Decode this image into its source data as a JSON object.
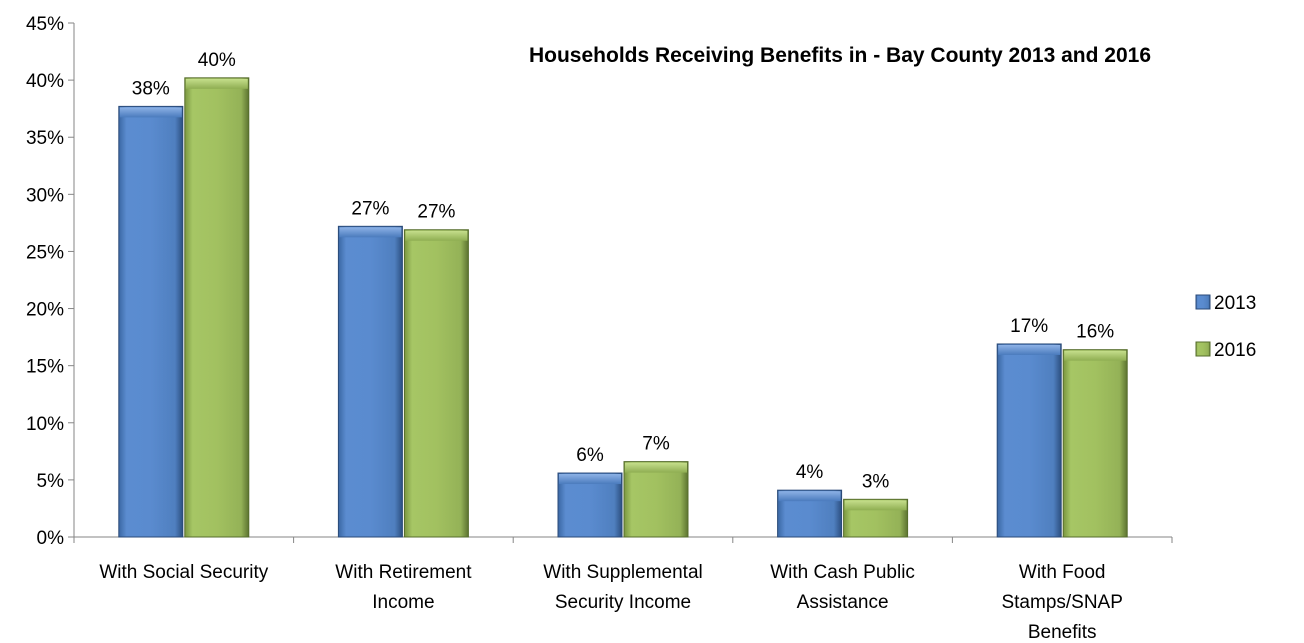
{
  "chart_data": {
    "type": "bar",
    "title": "Households Receiving Benefits in - Bay County 2013 and 2016",
    "categories": [
      [
        "With Social Security"
      ],
      [
        "With Retirement",
        "Income"
      ],
      [
        "With Supplemental",
        "Security Income"
      ],
      [
        "With Cash Public",
        "Assistance"
      ],
      [
        "With Food",
        "Stamps/SNAP",
        "Benefits"
      ]
    ],
    "series": [
      {
        "name": "2013",
        "values": [
          37.7,
          27.2,
          5.6,
          4.1,
          16.9
        ],
        "labels": [
          "38%",
          "27%",
          "6%",
          "4%",
          "17%"
        ],
        "color": "#4f81bd"
      },
      {
        "name": "2016",
        "values": [
          40.2,
          26.9,
          6.6,
          3.3,
          16.4
        ],
        "labels": [
          "40%",
          "27%",
          "7%",
          "3%",
          "16%"
        ],
        "color": "#9bbb59"
      }
    ],
    "ylim": [
      0,
      45
    ],
    "yticks": [
      "0%",
      "5%",
      "10%",
      "15%",
      "20%",
      "25%",
      "30%",
      "35%",
      "40%",
      "45%"
    ],
    "grid": false,
    "legend": "right"
  }
}
